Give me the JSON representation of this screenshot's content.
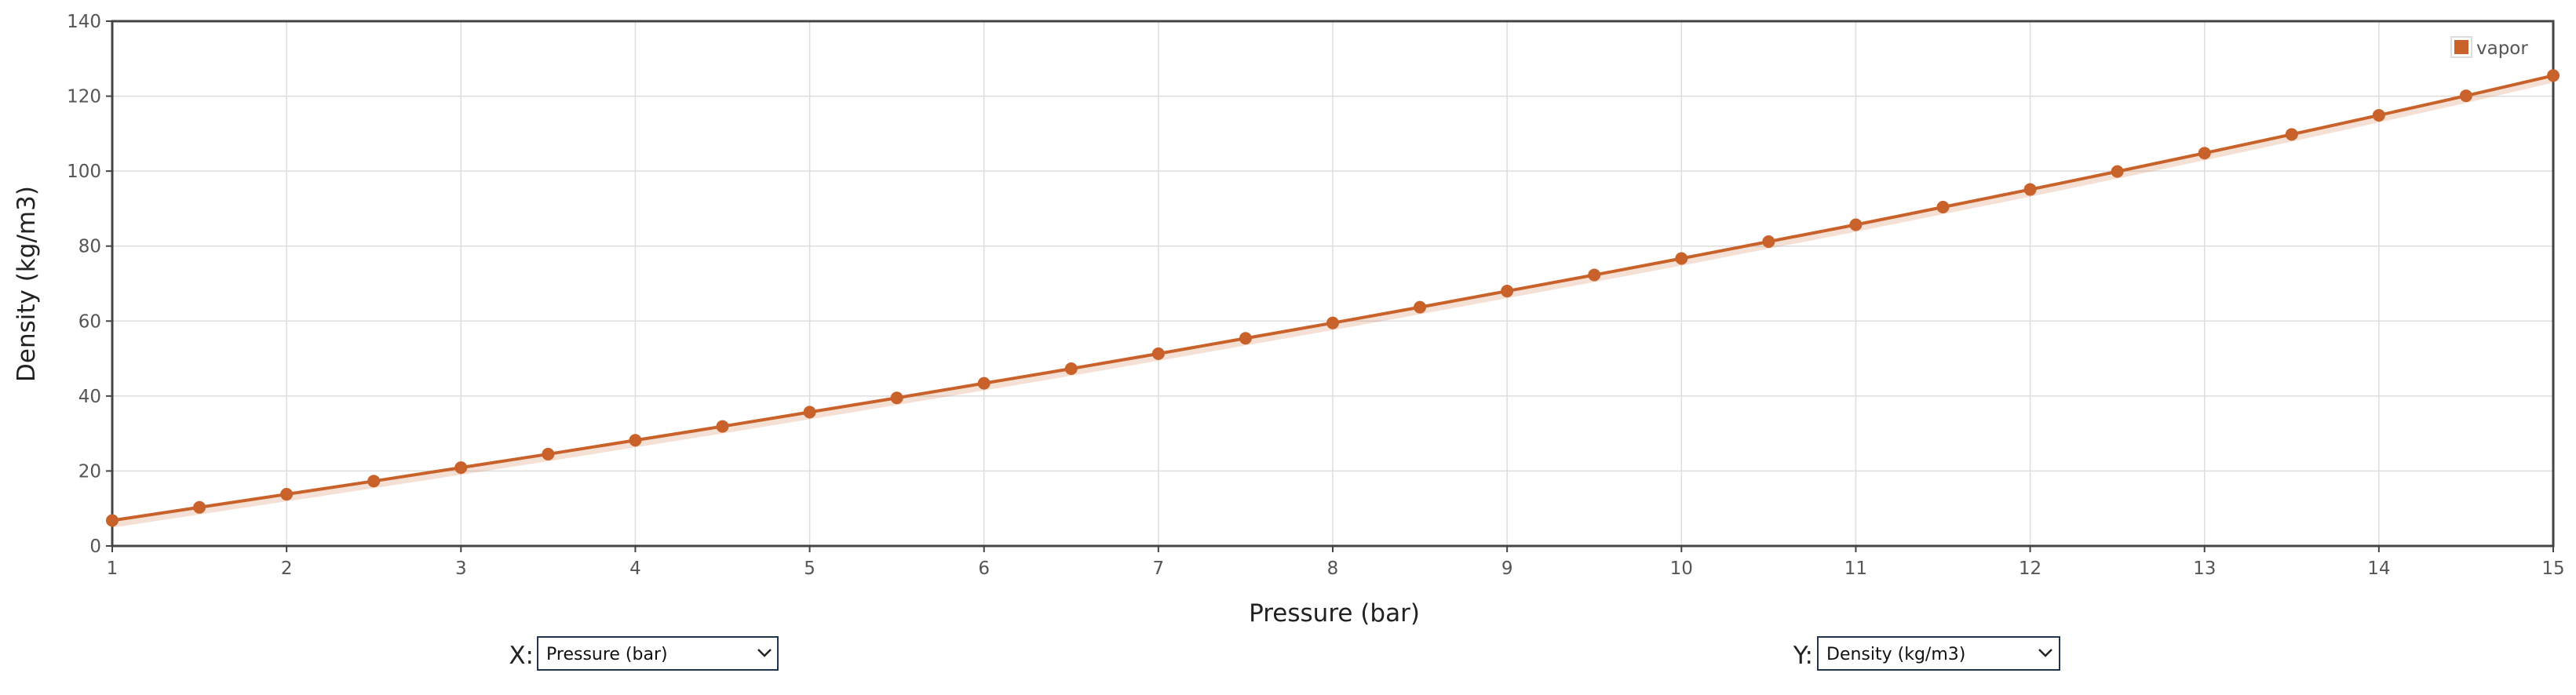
{
  "chart_data": {
    "type": "line",
    "x": [
      1,
      1.5,
      2,
      2.5,
      3,
      3.5,
      4,
      4.5,
      5,
      5.5,
      6,
      6.5,
      7,
      7.5,
      8,
      8.5,
      9,
      9.5,
      10,
      10.5,
      11,
      11.5,
      12,
      12.5,
      13,
      13.5,
      14,
      14.5,
      15
    ],
    "series": [
      {
        "name": "vapor",
        "color": "#c8622a",
        "values": [
          6.8,
          10.3,
          13.8,
          17.3,
          20.9,
          24.5,
          28.2,
          31.9,
          35.7,
          39.5,
          43.4,
          47.3,
          51.3,
          55.4,
          59.5,
          63.7,
          68.0,
          72.3,
          76.7,
          81.2,
          85.7,
          90.4,
          95.1,
          99.9,
          104.8,
          109.8,
          114.9,
          120.1,
          125.5
        ]
      }
    ],
    "xlim": [
      1,
      15
    ],
    "ylim": [
      0,
      140
    ],
    "xticks": [
      1,
      2,
      3,
      4,
      5,
      6,
      7,
      8,
      9,
      10,
      11,
      12,
      13,
      14,
      15
    ],
    "yticks": [
      0,
      20,
      40,
      60,
      80,
      100,
      120,
      140
    ],
    "xlabel": "Pressure (bar)",
    "ylabel": "Density (kg/m3)",
    "grid": true,
    "legend": "upper right"
  },
  "controls": {
    "x_label": "X:",
    "x_selected": "Pressure (bar)",
    "y_label": "Y:",
    "y_selected": "Density (kg/m3)"
  }
}
